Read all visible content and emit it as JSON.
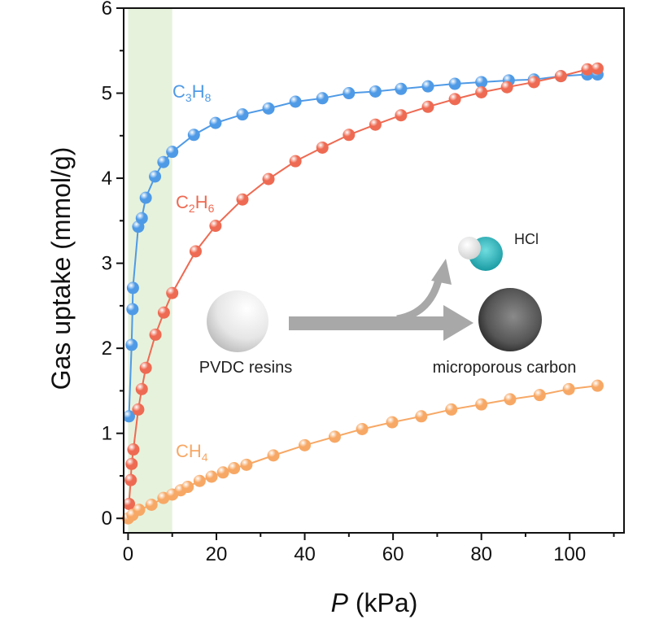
{
  "chart_data": {
    "type": "line",
    "title": "",
    "xlabel_italic": "P",
    "xlabel_rest": " (kPa)",
    "ylabel": "Gas uptake (mmol/g)",
    "xlim": [
      -1,
      112.3
    ],
    "ylim": [
      -0.17,
      6
    ],
    "xticks": [
      0,
      20,
      40,
      60,
      80,
      100
    ],
    "yticks": [
      0,
      1,
      2,
      3,
      4,
      5,
      6
    ],
    "grid": false,
    "shaded_region": {
      "x": [
        0,
        10
      ],
      "color": "#e6f2dc"
    },
    "series": [
      {
        "name": "C3H8",
        "label_main": "C",
        "sub1": "3",
        "mid": "H",
        "sub2": "8",
        "color": "#4f9ae6",
        "x": [
          0.2,
          0.8,
          1,
          1.1,
          2.3,
          3.1,
          4,
          6.1,
          8,
          10,
          14.9,
          19.8,
          25.9,
          31.8,
          37.9,
          44,
          50,
          56,
          61.8,
          67.9,
          74,
          80,
          86.2,
          91.9,
          98,
          104,
          106.3
        ],
        "y": [
          1.2,
          2.04,
          2.46,
          2.71,
          3.43,
          3.53,
          3.77,
          4.02,
          4.19,
          4.31,
          4.51,
          4.65,
          4.75,
          4.82,
          4.9,
          4.94,
          5.0,
          5.02,
          5.05,
          5.08,
          5.11,
          5.13,
          5.15,
          5.16,
          5.2,
          5.22,
          5.22
        ]
      },
      {
        "name": "C2H6",
        "label_main": "C",
        "sub1": "2",
        "mid": "H",
        "sub2": "6",
        "color": "#ee6a52",
        "x": [
          0.2,
          0.6,
          0.8,
          1.2,
          2.3,
          3.1,
          4,
          6.2,
          8.1,
          10,
          15.3,
          19.8,
          25.9,
          31.8,
          37.9,
          44,
          50,
          56,
          61.8,
          67.9,
          74,
          80,
          85.8,
          91.9,
          98,
          104,
          106.3
        ],
        "y": [
          0.17,
          0.45,
          0.64,
          0.81,
          1.28,
          1.52,
          1.77,
          2.16,
          2.42,
          2.65,
          3.14,
          3.44,
          3.75,
          3.99,
          4.2,
          4.36,
          4.51,
          4.63,
          4.74,
          4.84,
          4.93,
          5.01,
          5.07,
          5.13,
          5.2,
          5.28,
          5.29
        ]
      },
      {
        "name": "CH4",
        "label_main": "CH",
        "sub1": "4",
        "mid": "",
        "sub2": "",
        "color": "#f7a865",
        "x": [
          0,
          1,
          2.5,
          5.3,
          8,
          10,
          11.9,
          13.5,
          16.2,
          18.9,
          21.5,
          24,
          26.8,
          32.9,
          40,
          46.8,
          53,
          59.8,
          66.4,
          73.2,
          80,
          86.5,
          93.2,
          99.8,
          106.3
        ],
        "y": [
          0,
          0.04,
          0.1,
          0.16,
          0.24,
          0.28,
          0.33,
          0.37,
          0.44,
          0.49,
          0.54,
          0.59,
          0.63,
          0.74,
          0.86,
          0.96,
          1.05,
          1.13,
          1.2,
          1.28,
          1.34,
          1.4,
          1.45,
          1.52,
          1.56
        ]
      }
    ],
    "annotations": {
      "pvdc": "PVDC resins",
      "carbon": "microporous carbon",
      "hcl": "HCl"
    }
  }
}
